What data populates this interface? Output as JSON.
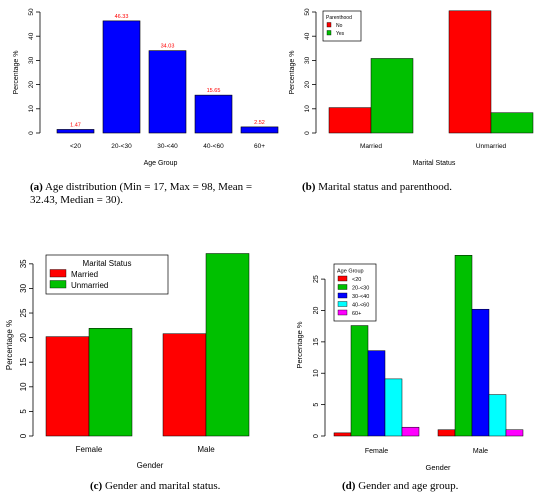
{
  "chart_data": [
    {
      "type": "bar",
      "title": "",
      "xlabel": "Age Group",
      "ylabel": "Percentage %",
      "categories": [
        "<20",
        "20-<30",
        "30-<40",
        "40-<60",
        "60+"
      ],
      "values": [
        1.47,
        46.33,
        34.03,
        15.65,
        2.52
      ],
      "value_labels": [
        "1.47",
        "46.33",
        "34.03",
        "15.65",
        "2.52"
      ],
      "ylim": [
        0,
        50
      ],
      "yticks": [
        "0",
        "10",
        "20",
        "30",
        "40",
        "50"
      ],
      "bar_color": "#0000FF",
      "label_color": "#FF0000",
      "caption_tag": "(a)",
      "caption_text": "Age distribution (Min = 17, Max = 98, Mean = 32.43, Median = 30)."
    },
    {
      "type": "bar",
      "title": "",
      "xlabel": "Marital Status",
      "ylabel": "Percentage %",
      "categories": [
        "Married",
        "Unmarried"
      ],
      "series": [
        {
          "name": "No",
          "values": [
            10.5,
            50.5
          ],
          "color": "#FF0000"
        },
        {
          "name": "Yes",
          "values": [
            30.8,
            8.4
          ],
          "color": "#00C000"
        }
      ],
      "legend_title": "Parenthood",
      "legend_position": "top-left",
      "ylim": [
        0,
        50
      ],
      "yticks": [
        "0",
        "10",
        "20",
        "30",
        "40",
        "50"
      ],
      "caption_tag": "(b)",
      "caption_text": "Marital status and parenthood."
    },
    {
      "type": "bar",
      "title": "",
      "xlabel": "Gender",
      "ylabel": "Percentage %",
      "categories": [
        "Female",
        "Male"
      ],
      "series": [
        {
          "name": "Married",
          "values": [
            20.2,
            20.8
          ],
          "color": "#FF0000"
        },
        {
          "name": "Unmarried",
          "values": [
            21.9,
            37.1
          ],
          "color": "#00C000"
        }
      ],
      "legend_title": "Marital Status",
      "legend_position": "top-left",
      "ylim": [
        0,
        37
      ],
      "yticks": [
        "0",
        "5",
        "10",
        "15",
        "20",
        "25",
        "30",
        "35"
      ],
      "caption_tag": "(c)",
      "caption_text": "Gender and marital status."
    },
    {
      "type": "bar",
      "title": "",
      "xlabel": "Gender",
      "ylabel": "Percentage %",
      "categories": [
        "Female",
        "Male"
      ],
      "series": [
        {
          "name": "<20",
          "values": [
            0.5,
            1.0
          ],
          "color": "#FF0000"
        },
        {
          "name": "20-<30",
          "values": [
            17.6,
            28.8
          ],
          "color": "#00C000"
        },
        {
          "name": "30-<40",
          "values": [
            13.6,
            20.2
          ],
          "color": "#0000FF"
        },
        {
          "name": "40-<60",
          "values": [
            9.1,
            6.6
          ],
          "color": "#00FFFF"
        },
        {
          "name": "60+",
          "values": [
            1.4,
            1.0
          ],
          "color": "#FF00FF"
        }
      ],
      "legend_title": "Age Group",
      "legend_position": "top-left",
      "ylim": [
        0,
        29
      ],
      "yticks": [
        "0",
        "5",
        "10",
        "15",
        "20",
        "25"
      ],
      "caption_tag": "(d)",
      "caption_text": "Gender and age group."
    }
  ]
}
